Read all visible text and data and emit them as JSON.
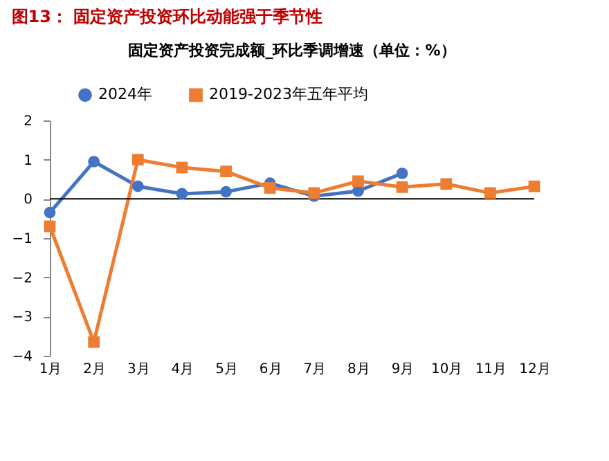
{
  "chart_data": {
    "type": "line",
    "annotations": [
      "图13：  固定资产投资环比动能强于季节性"
    ],
    "title": "固定资产投资完成额_环比季调增速（单位：%）",
    "categories": [
      "1月",
      "2月",
      "3月",
      "4月",
      "5月",
      "6月",
      "7月",
      "8月",
      "9月",
      "10月",
      "11月",
      "12月"
    ],
    "series": [
      {
        "name": "2024年",
        "color": "#4472c4",
        "marker": "circle",
        "values": [
          -0.35,
          0.95,
          0.32,
          0.13,
          0.18,
          0.4,
          0.07,
          0.2,
          0.65,
          null,
          null,
          null
        ]
      },
      {
        "name": "2019-2023年五年平均",
        "color": "#ed7d31",
        "marker": "square",
        "values": [
          -0.7,
          -3.65,
          1.0,
          0.8,
          0.7,
          0.28,
          0.15,
          0.45,
          0.3,
          0.38,
          0.15,
          0.32
        ]
      }
    ],
    "ref_lines": [
      {
        "axis": "y",
        "value": 0,
        "color": "#000000"
      }
    ],
    "ylim": [
      -4,
      2
    ],
    "yticks": [
      -4,
      -3,
      -2,
      -1,
      0,
      1,
      2
    ],
    "grid": false,
    "legend": "top",
    "line_style": "solid"
  }
}
